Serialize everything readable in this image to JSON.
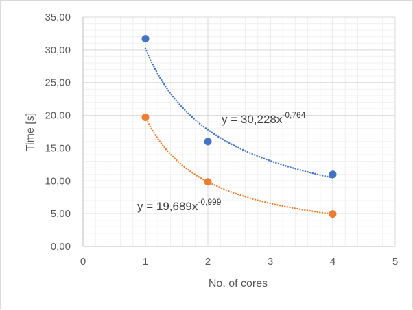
{
  "chart_data": {
    "type": "scatter",
    "title": "",
    "xlabel": "No. of cores",
    "ylabel": "Time [s]",
    "xlim": [
      0,
      5
    ],
    "ylim": [
      0,
      35
    ],
    "x_ticks": [
      "0",
      "1",
      "2",
      "3",
      "4",
      "5"
    ],
    "y_ticks": [
      "0,00",
      "5,00",
      "10,00",
      "15,00",
      "20,00",
      "25,00",
      "30,00",
      "35,00"
    ],
    "grid": true,
    "legend": "none",
    "series": [
      {
        "color": "#4472c4",
        "x": [
          1,
          2,
          4
        ],
        "y": [
          31.7,
          16.0,
          11.0
        ],
        "trendline": {
          "type": "power",
          "a": 30.228,
          "b": -0.764,
          "label_base": "y = 30,228x",
          "label_exp": "-0,764"
        }
      },
      {
        "color": "#ed7d31",
        "x": [
          1,
          2,
          4
        ],
        "y": [
          19.7,
          9.85,
          4.95
        ],
        "trendline": {
          "type": "power",
          "a": 19.689,
          "b": -0.999,
          "label_base": "y = 19,689x",
          "label_exp": "-0,999"
        }
      }
    ]
  }
}
